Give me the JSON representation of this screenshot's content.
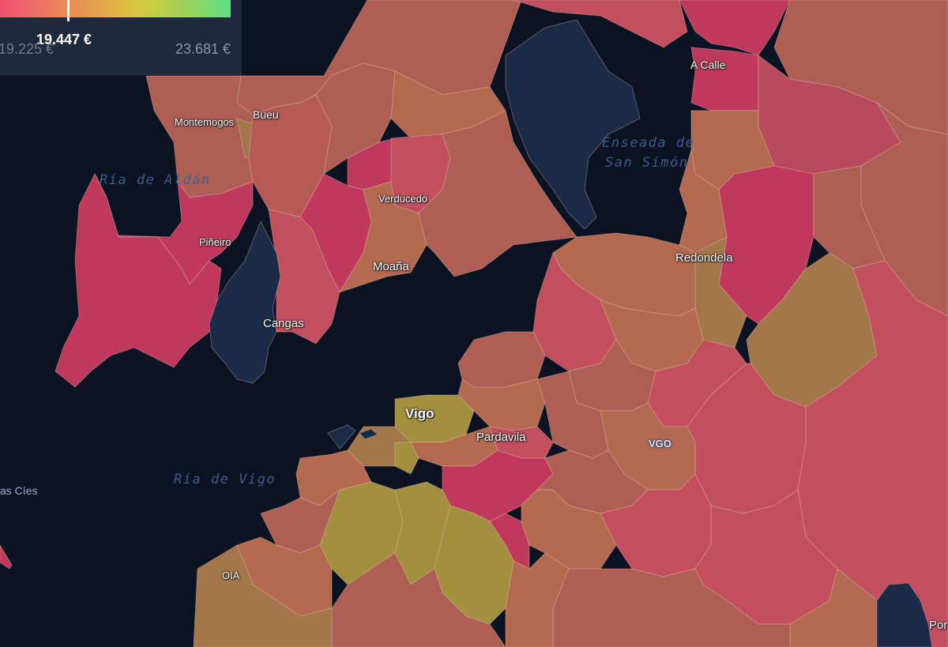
{
  "legend": {
    "current_value": "19.447 €",
    "min_value": "19.225 €",
    "max_value": "23.681 €",
    "colors": [
      "#f0506e",
      "#e98a5a",
      "#dfbd3e",
      "#9ed05a",
      "#5ce08a"
    ]
  },
  "colors": {
    "sea": "#0b1221",
    "no_data": "#1a2b48",
    "pink": "#bd385f",
    "coral": "#c24e5e",
    "rust": "#ae5e53",
    "orange_brown": "#b36a4f",
    "tan": "#a3774a",
    "olive": "#a3903f"
  },
  "water_labels": {
    "ria_aldan": "Ría de Aldán",
    "ensenada_line1": "Enseada de",
    "ensenada_line2": "San Simón",
    "ria_vigo": "Ría de Vigo"
  },
  "places": {
    "a_calle": "A Calle",
    "bueu": "Bueu",
    "montemogos": "Montemogos",
    "verducedo": "Verducedo",
    "pineiro": "Piñeiro",
    "moana": "Moaña",
    "cangas": "Cangas",
    "redondela": "Redondela",
    "vigo": "Vigo",
    "pardavila": "Pardavila",
    "vgo": "VGO",
    "oia": "OIA",
    "islas_cies": "as Cíes",
    "por": "Por"
  }
}
